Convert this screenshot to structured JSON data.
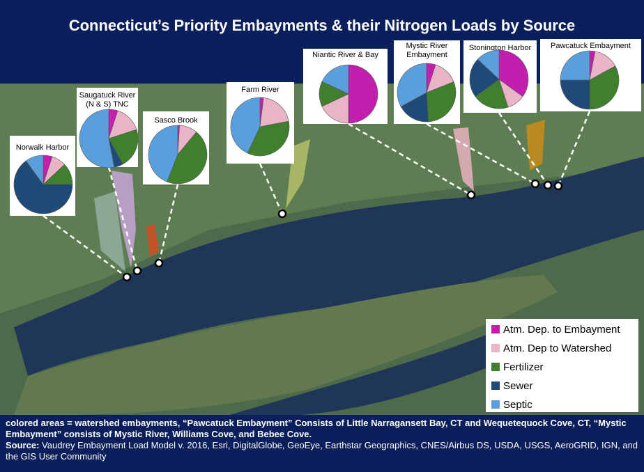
{
  "title": "Connecticut’s Priority Embayments & their Nitrogen Loads by Source",
  "legend": [
    {
      "name": "Atm. Dep. to Embayment",
      "color": "#c21fae"
    },
    {
      "name": "Atm. Dep to Watershed",
      "color": "#eab4c8"
    },
    {
      "name": "Fertilizer",
      "color": "#3f7f2e"
    },
    {
      "name": "Sewer",
      "color": "#1f4a78"
    },
    {
      "name": "Septic",
      "color": "#5a9fdc"
    }
  ],
  "embayments": [
    {
      "label": [
        "Norwalk Harbor"
      ],
      "values": [
        5,
        8,
        12,
        65,
        10
      ]
    },
    {
      "label": [
        "Saugatuck River",
        "(N & S) TNC"
      ],
      "values": [
        5,
        15,
        22,
        5,
        53
      ]
    },
    {
      "label": [
        "Sasco Brook"
      ],
      "values": [
        1,
        10,
        45,
        0,
        44
      ]
    },
    {
      "label": [
        "Farm River"
      ],
      "values": [
        2,
        20,
        35,
        0,
        43
      ]
    },
    {
      "label": [
        "Niantic River &  Bay"
      ],
      "values": [
        50,
        18,
        14,
        0,
        18
      ]
    },
    {
      "label": [
        "Mystic River",
        "Embayment"
      ],
      "values": [
        5,
        14,
        30,
        18,
        33
      ]
    },
    {
      "label": [
        "Stonington Harbor"
      ],
      "values": [
        35,
        10,
        20,
        22,
        13
      ]
    },
    {
      "label": [
        "Pawcatuck Embayment"
      ],
      "values": [
        3,
        14,
        33,
        25,
        25
      ]
    }
  ],
  "note": "colored areas = watershed embayments, “Pawcatuck Embayment” Consists of Little Narragansett Bay, CT and Wequetequock Cove, CT, “Mystic Embayment” consists of Mystic River, Williams Cove, and Bebee Cove.",
  "source_label": "Source:",
  "source": "Vaudrey Embayment Load Model v. 2016, Esri, DigitalGlobe, GeoEye, Earthstar Geographics, CNES/Airbus DS, USDA, USGS, AeroGRID, IGN, and the GIS User Community"
}
